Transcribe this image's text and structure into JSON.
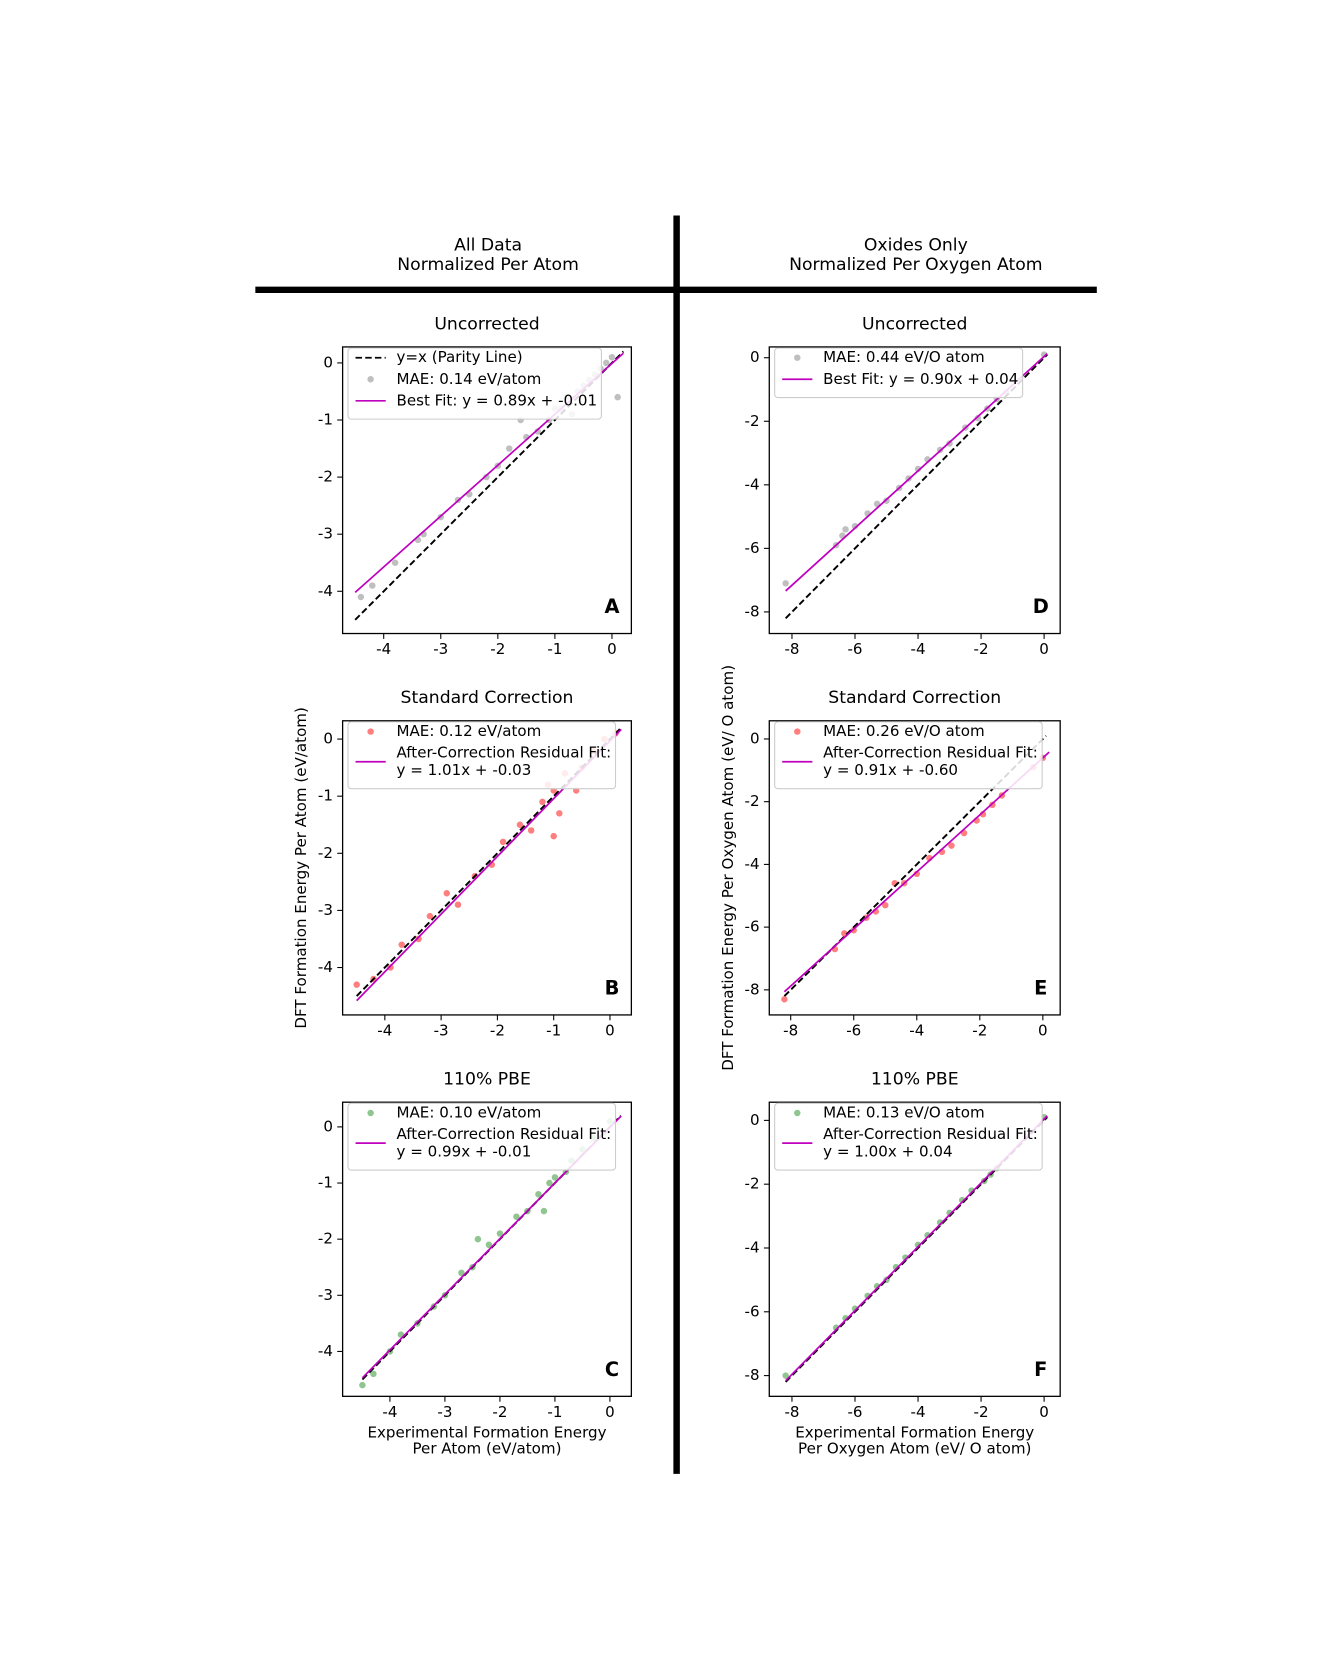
{
  "headers": [
    [
      "All Data",
      "Normalized Per Atom"
    ],
    [
      "Oxides Only",
      "Normalized Per Oxygen Atom"
    ]
  ],
  "chart_data": [
    {
      "type": "scatter",
      "title": "Uncorrected",
      "panel_label": "A",
      "xlim": [
        -4.72,
        0.34
      ],
      "ylim": [
        -4.74,
        0.28
      ],
      "xticks": [
        -4,
        -3,
        -2,
        -1,
        0
      ],
      "yticks": [
        0,
        -1,
        -2,
        -3,
        -4
      ],
      "series": [
        {
          "name": "y=x (Parity Line)",
          "color": "#000000",
          "mode": "line",
          "dash": true,
          "x": [
            -4.5,
            0.2
          ],
          "values": [
            -4.5,
            0.2
          ]
        },
        {
          "name": "MAE: 0.14 eV/atom",
          "color": "#808080",
          "mode": "markers",
          "x": [
            -4.4,
            -4.2,
            -3.8,
            -3.4,
            -3.3,
            -3.0,
            -2.7,
            -2.5,
            -2.2,
            -2.0,
            -1.8,
            -1.5,
            -1.3,
            -1.1,
            -1.0,
            -0.9,
            -0.8,
            -0.6,
            -0.5,
            -0.4,
            -0.3,
            -0.2,
            -0.1,
            0.0,
            0.1,
            -0.7,
            -1.6
          ],
          "values": [
            -4.1,
            -3.9,
            -3.5,
            -3.1,
            -3.0,
            -2.7,
            -2.4,
            -2.3,
            -2.0,
            -1.8,
            -1.5,
            -1.3,
            -1.2,
            -1.0,
            -0.8,
            -0.8,
            -0.6,
            -0.5,
            -0.4,
            -0.3,
            -0.2,
            -0.1,
            0.0,
            0.1,
            -0.6,
            -0.9,
            -1.0
          ]
        },
        {
          "name": "Best Fit: y = 0.89x + -0.01",
          "color": "#bf00bf",
          "mode": "line",
          "x": [
            -4.5,
            0.2
          ],
          "values": [
            -4.02,
            0.17
          ]
        }
      ]
    },
    {
      "type": "scatter",
      "title": "Standard Correction",
      "panel_label": "B",
      "ylabel": "DFT Formation Energy Per Atom (eV/atom)",
      "xlim": [
        -4.75,
        0.38
      ],
      "ylim": [
        -4.83,
        0.32
      ],
      "xticks": [
        -4,
        -3,
        -2,
        -1,
        0
      ],
      "yticks": [
        0,
        -1,
        -2,
        -3,
        -4
      ],
      "series": [
        {
          "color": "#000000",
          "mode": "line",
          "dash": true,
          "x": [
            -4.5,
            0.2
          ],
          "values": [
            -4.5,
            0.2
          ]
        },
        {
          "name": "MAE: 0.12 eV/atom",
          "color": "#ff0000",
          "mode": "markers",
          "x": [
            -4.5,
            -4.2,
            -3.9,
            -3.7,
            -3.4,
            -3.2,
            -2.9,
            -2.7,
            -2.4,
            -2.1,
            -1.9,
            -1.6,
            -1.4,
            -1.2,
            -1.0,
            -0.9,
            -0.8,
            -0.6,
            -0.5,
            -0.3,
            -0.1,
            0.1,
            -1.1,
            -1.0
          ],
          "values": [
            -4.3,
            -4.2,
            -4.0,
            -3.6,
            -3.5,
            -3.1,
            -2.7,
            -2.9,
            -2.4,
            -2.2,
            -1.8,
            -1.5,
            -1.6,
            -1.1,
            -0.9,
            -1.3,
            -0.6,
            -0.9,
            -0.5,
            -0.2,
            0.0,
            0.1,
            -0.8,
            -1.7
          ]
        },
        {
          "name": [
            "After-Correction Residual Fit:",
            "y = 1.01x + -0.03"
          ],
          "color": "#bf00bf",
          "mode": "line",
          "x": [
            -4.5,
            0.2
          ],
          "values": [
            -4.58,
            0.17
          ]
        }
      ]
    },
    {
      "type": "scatter",
      "title": "110% PBE",
      "panel_label": "C",
      "xlabel": [
        "Experimental Formation Energy",
        "Per Atom (eV/atom)"
      ],
      "xlim": [
        -4.86,
        0.39
      ],
      "ylim": [
        -4.8,
        0.44
      ],
      "xticks": [
        -4,
        -3,
        -2,
        -1,
        0
      ],
      "yticks": [
        0,
        -1,
        -2,
        -3,
        -4
      ],
      "series": [
        {
          "color": "#000000",
          "mode": "line",
          "dash": true,
          "x": [
            -4.5,
            0.2
          ],
          "values": [
            -4.5,
            0.2
          ]
        },
        {
          "name": "MAE: 0.10 eV/atom",
          "color": "#228b22",
          "mode": "markers",
          "x": [
            -4.5,
            -4.3,
            -4.0,
            -3.8,
            -3.5,
            -3.2,
            -3.0,
            -2.7,
            -2.5,
            -2.2,
            -2.0,
            -1.7,
            -1.5,
            -1.3,
            -1.1,
            -1.0,
            -0.8,
            -0.7,
            -0.5,
            -0.3,
            -0.1,
            0.0,
            -1.2,
            -2.4
          ],
          "values": [
            -4.6,
            -4.4,
            -4.0,
            -3.7,
            -3.5,
            -3.2,
            -3.0,
            -2.6,
            -2.5,
            -2.1,
            -1.9,
            -1.6,
            -1.5,
            -1.2,
            -1.0,
            -0.9,
            -0.8,
            -0.6,
            -0.4,
            -0.2,
            -0.1,
            0.1,
            -1.5,
            -2.0
          ]
        },
        {
          "name": [
            "After-Correction Residual Fit:",
            "y = 0.99x + -0.01"
          ],
          "color": "#bf00bf",
          "mode": "line",
          "x": [
            -4.5,
            0.2
          ],
          "values": [
            -4.47,
            0.19
          ]
        }
      ]
    },
    {
      "type": "scatter",
      "title": "Uncorrected",
      "panel_label": "D",
      "xlim": [
        -8.72,
        0.51
      ],
      "ylim": [
        -8.68,
        0.34
      ],
      "xticks": [
        -8,
        -6,
        -4,
        -2,
        0
      ],
      "yticks": [
        0,
        -2,
        -4,
        -6,
        -8
      ],
      "series": [
        {
          "color": "#000000",
          "mode": "line",
          "dash": true,
          "x": [
            -8.2,
            0.1
          ],
          "values": [
            -8.2,
            0.1
          ]
        },
        {
          "name": "MAE: 0.44 eV/O atom",
          "color": "#808080",
          "mode": "markers",
          "x": [
            -8.2,
            -6.6,
            -6.3,
            -6.0,
            -5.6,
            -5.3,
            -5.0,
            -4.6,
            -4.3,
            -4.0,
            -3.7,
            -3.3,
            -3.0,
            -2.5,
            -2.1,
            -1.8,
            -1.5,
            -1.2,
            0.0,
            -6.4
          ],
          "values": [
            -7.1,
            -5.9,
            -5.4,
            -5.3,
            -4.9,
            -4.6,
            -4.5,
            -4.1,
            -3.8,
            -3.5,
            -3.2,
            -2.9,
            -2.7,
            -2.2,
            -1.9,
            -1.6,
            -1.3,
            -1.1,
            0.1,
            -5.6
          ]
        },
        {
          "name": "Best Fit: y = 0.90x + 0.04",
          "color": "#bf00bf",
          "mode": "line",
          "x": [
            -8.2,
            0.1
          ],
          "values": [
            -7.34,
            0.13
          ]
        }
      ]
    },
    {
      "type": "scatter",
      "title": "Standard Correction",
      "panel_label": "E",
      "ylabel": "DFT Formation Energy Per Oxygen Atom (eV/ O atom)",
      "xlim": [
        -8.68,
        0.55
      ],
      "ylim": [
        -8.8,
        0.58
      ],
      "xticks": [
        -8,
        -6,
        -4,
        -2,
        0
      ],
      "yticks": [
        0,
        -2,
        -4,
        -6,
        -8
      ],
      "series": [
        {
          "color": "#000000",
          "mode": "line",
          "dash": true,
          "x": [
            -8.2,
            0.1
          ],
          "values": [
            -8.2,
            0.1
          ]
        },
        {
          "name": "MAE: 0.26 eV/O atom",
          "color": "#ff0000",
          "mode": "markers",
          "x": [
            -8.2,
            -6.6,
            -6.3,
            -6.0,
            -5.6,
            -5.3,
            -5.0,
            -4.7,
            -4.4,
            -4.0,
            -3.6,
            -3.2,
            -2.9,
            -2.5,
            -2.1,
            -1.9,
            -1.6,
            -1.3,
            -0.3,
            0.0
          ],
          "values": [
            -8.3,
            -6.7,
            -6.2,
            -6.1,
            -5.7,
            -5.5,
            -5.3,
            -4.6,
            -4.6,
            -4.3,
            -3.8,
            -3.6,
            -3.4,
            -3.0,
            -2.6,
            -2.4,
            -2.1,
            -1.8,
            -0.9,
            -0.6
          ]
        },
        {
          "name": [
            "After-Correction Residual Fit:",
            "y = 0.91x + -0.60"
          ],
          "color": "#bf00bf",
          "mode": "line",
          "x": [
            -8.2,
            0.2
          ],
          "values": [
            -8.06,
            -0.42
          ]
        }
      ]
    },
    {
      "type": "scatter",
      "title": "110% PBE",
      "panel_label": "F",
      "xlabel": [
        "Experimental Formation Energy",
        "Per Oxygen Atom (eV/ O atom)"
      ],
      "xlim": [
        -8.72,
        0.51
      ],
      "ylim": [
        -8.65,
        0.57
      ],
      "xticks": [
        -8,
        -6,
        -4,
        -2,
        0
      ],
      "yticks": [
        0,
        -2,
        -4,
        -6,
        -8
      ],
      "series": [
        {
          "color": "#000000",
          "mode": "line",
          "dash": true,
          "x": [
            -8.2,
            0.1
          ],
          "values": [
            -8.2,
            0.1
          ]
        },
        {
          "name": "MAE: 0.13 eV/O atom",
          "color": "#228b22",
          "mode": "markers",
          "x": [
            -8.2,
            -6.6,
            -6.3,
            -6.0,
            -5.6,
            -5.3,
            -5.0,
            -4.7,
            -4.4,
            -4.0,
            -3.7,
            -3.3,
            -3.0,
            -2.6,
            -2.3,
            -1.9,
            -1.7,
            -1.5,
            0.0
          ],
          "values": [
            -8.0,
            -6.5,
            -6.2,
            -5.9,
            -5.5,
            -5.2,
            -5.0,
            -4.6,
            -4.3,
            -3.9,
            -3.6,
            -3.2,
            -2.9,
            -2.5,
            -2.2,
            -1.9,
            -1.7,
            -1.5,
            0.1
          ]
        },
        {
          "name": [
            "After-Correction Residual Fit:",
            "y = 1.00x + 0.04"
          ],
          "color": "#bf00bf",
          "mode": "line",
          "x": [
            -8.2,
            0.1
          ],
          "values": [
            -8.16,
            0.14
          ]
        }
      ]
    }
  ]
}
